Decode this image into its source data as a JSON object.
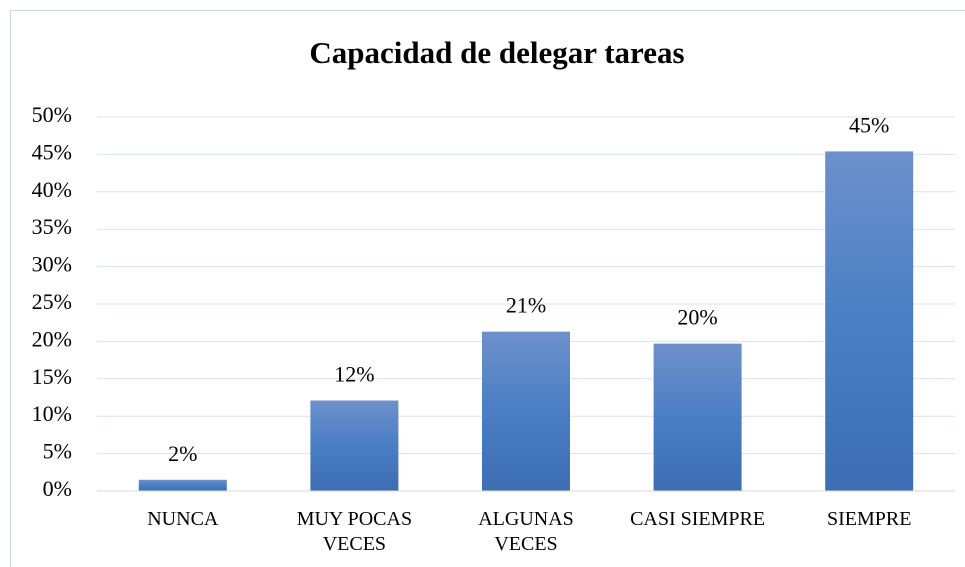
{
  "chart_data": {
    "type": "bar",
    "title": "Capacidad de delegar tareas",
    "categories": [
      "NUNCA",
      "MUY POCAS VECES",
      "ALGUNAS VECES",
      "CASI SIEMPRE",
      "SIEMPRE"
    ],
    "values": [
      1.5,
      12.1,
      21.3,
      19.7,
      45.4
    ],
    "value_labels": [
      "2%",
      "12%",
      "21%",
      "20%",
      "45%"
    ],
    "color": "#4a7cc0",
    "ylim": [
      0,
      50
    ],
    "yticks": [
      {
        "value": 0,
        "label": "0%"
      },
      {
        "value": 5,
        "label": "5%"
      },
      {
        "value": 10,
        "label": "10%"
      },
      {
        "value": 15,
        "label": "15%"
      },
      {
        "value": 20,
        "label": "20%"
      },
      {
        "value": 25,
        "label": "25%"
      },
      {
        "value": 30,
        "label": "30%"
      },
      {
        "value": 35,
        "label": "35%"
      },
      {
        "value": 40,
        "label": "40%"
      },
      {
        "value": 45,
        "label": "45%"
      },
      {
        "value": 50,
        "label": "50%"
      }
    ],
    "grid": true
  }
}
